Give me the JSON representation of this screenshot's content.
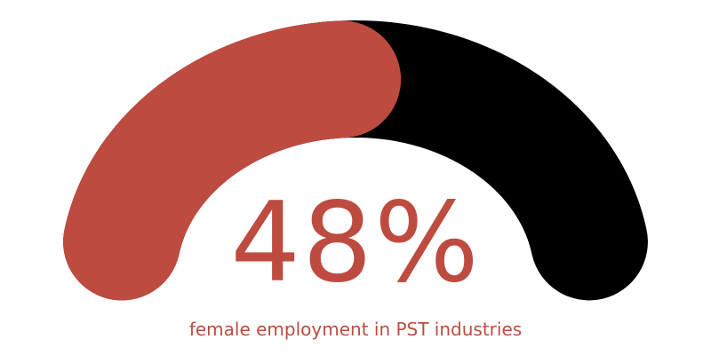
{
  "chart_data": {
    "type": "gauge",
    "value": 48,
    "min": 0,
    "max": 100,
    "display_value": "48%",
    "caption": "female employment in PST industries",
    "colors": {
      "fill": "#be4b40",
      "track": "#000000",
      "background": "#ffffff",
      "text": "#be4b40"
    }
  }
}
